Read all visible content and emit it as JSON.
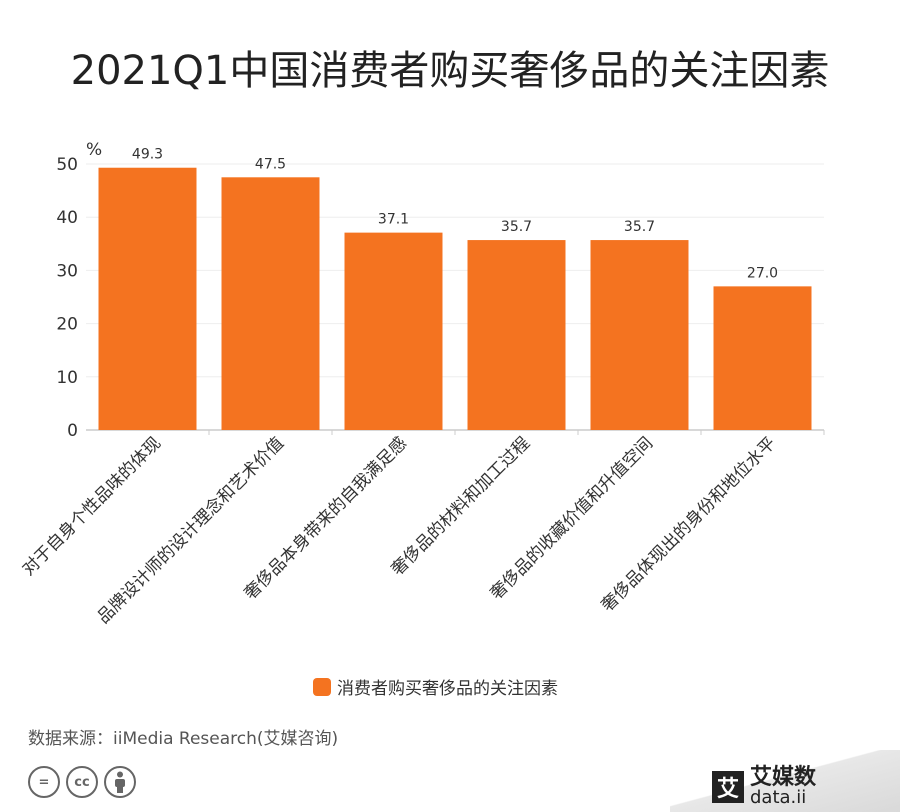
{
  "chart_data": {
    "type": "bar",
    "title": "2021Q1中国消费者购买奢侈品的关注因素",
    "y_unit": "%",
    "ylim": [
      0,
      50
    ],
    "yticks": [
      0,
      10,
      20,
      30,
      40,
      50
    ],
    "categories": [
      "对于自身个性品味的体现",
      "品牌设计师的设计理念和艺术价值",
      "奢侈品本身带来的自我满足感",
      "奢侈品的材料和加工过程",
      "奢侈品的收藏价值和升值空间",
      "奢侈品体现出的身份和地位水平"
    ],
    "series": [
      {
        "name": "消费者购买奢侈品的关注因素",
        "values": [
          49.3,
          47.5,
          37.1,
          35.7,
          35.7,
          27.0
        ]
      }
    ],
    "value_labels": [
      "49.3",
      "47.5",
      "37.1",
      "35.7",
      "35.7",
      "27.0"
    ],
    "bar_color": "#f47320",
    "grid": true,
    "legend_position": "bottom"
  },
  "source_text": "数据来源：iiMedia Research(艾媒咨询)",
  "license_icons": [
    "=",
    "cc",
    "by"
  ],
  "brand": {
    "logo_char": "艾",
    "name": "艾媒数",
    "url": "data.ii"
  }
}
